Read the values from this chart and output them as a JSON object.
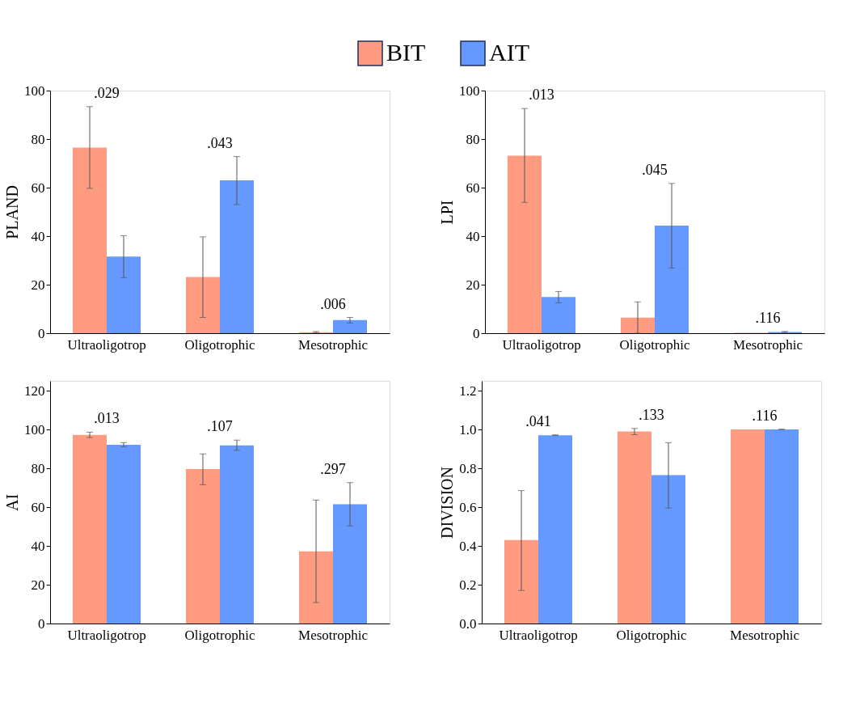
{
  "chart_data": [
    {
      "type": "bar",
      "ylabel": "PLAND",
      "categories": [
        "Ultraoligotrop",
        "Oligotrophic",
        "Mesotrophic"
      ],
      "ylim": [
        0,
        100
      ],
      "yticks": [
        0,
        20,
        40,
        60,
        80,
        100
      ],
      "grid": false,
      "legend": "top",
      "series": [
        {
          "name": "BIT",
          "color": "#ff9b80",
          "values": [
            76.5,
            23.2,
            0.4
          ],
          "errors": [
            [
              59.7,
              93.4
            ],
            [
              6.5,
              39.7
            ],
            [
              0.1,
              0.7
            ]
          ]
        },
        {
          "name": "AIT",
          "color": "#6699ff",
          "values": [
            31.6,
            63.0,
            5.4
          ],
          "errors": [
            [
              22.9,
              40.2
            ],
            [
              53.0,
              72.8
            ],
            [
              4.2,
              6.5
            ]
          ]
        }
      ],
      "annotations": [
        ".029",
        ".043",
        ".006"
      ]
    },
    {
      "type": "bar",
      "ylabel": "LPI",
      "categories": [
        "Ultraoligotrop",
        "Oligotrophic",
        "Mesotrophic"
      ],
      "ylim": [
        0,
        100
      ],
      "yticks": [
        0,
        20,
        40,
        60,
        80,
        100
      ],
      "grid": false,
      "series": [
        {
          "name": "BIT",
          "color": "#ff9b80",
          "values": [
            73.2,
            6.4,
            0.2
          ],
          "errors": [
            [
              53.9,
              92.6
            ],
            [
              0,
              12.9
            ],
            null
          ]
        },
        {
          "name": "AIT",
          "color": "#6699ff",
          "values": [
            14.9,
            44.3,
            0.5
          ],
          "errors": [
            [
              12.5,
              17.2
            ],
            [
              26.9,
              61.7
            ],
            [
              0.3,
              0.7
            ]
          ]
        }
      ],
      "annotations": [
        ".013",
        ".045",
        ".116"
      ]
    },
    {
      "type": "bar",
      "ylabel": "AI",
      "categories": [
        "Ultraoligotrop",
        "Oligotrophic",
        "Mesotrophic"
      ],
      "ylim": [
        0,
        125
      ],
      "yticks": [
        0,
        20,
        40,
        60,
        80,
        100,
        120
      ],
      "grid": false,
      "series": [
        {
          "name": "BIT",
          "color": "#ff9b80",
          "values": [
            97.2,
            79.6,
            37.2
          ],
          "errors": [
            [
              95.8,
              98.6
            ],
            [
              71.5,
              87.4
            ],
            [
              10.8,
              63.6
            ]
          ]
        },
        {
          "name": "AIT",
          "color": "#6699ff",
          "values": [
            92.1,
            91.8,
            61.5
          ],
          "errors": [
            [
              91.1,
              93.2
            ],
            [
              89.2,
              94.5
            ],
            [
              50.3,
              72.6
            ]
          ]
        }
      ],
      "annotations": [
        ".013",
        ".107",
        ".297"
      ]
    },
    {
      "type": "bar",
      "ylabel": "DIVISION",
      "categories": [
        "Ultraoligotrop",
        "Oligotrophic",
        "Mesotrophic"
      ],
      "ylim": [
        0,
        1.25
      ],
      "yticks": [
        {
          "value": 0,
          "label": "0.0"
        },
        0.2,
        0.4,
        0.6,
        0.8,
        {
          "value": 1,
          "label": "1.0"
        },
        1.2
      ],
      "grid": false,
      "series": [
        {
          "name": "BIT",
          "color": "#ff9b80",
          "values": [
            0.43,
            0.99,
            1.0
          ],
          "errors": [
            [
              0.17,
              0.685
            ],
            [
              0.973,
              1.005
            ],
            null
          ]
        },
        {
          "name": "AIT",
          "color": "#6699ff",
          "values": [
            0.97,
            0.765,
            1.0
          ],
          "errors": [
            [
              0.968,
              0.972
            ],
            [
              0.595,
              0.932
            ],
            [
              0.999,
              1.001
            ]
          ]
        }
      ],
      "annotations": [
        ".041",
        ".133",
        ".116"
      ]
    }
  ]
}
